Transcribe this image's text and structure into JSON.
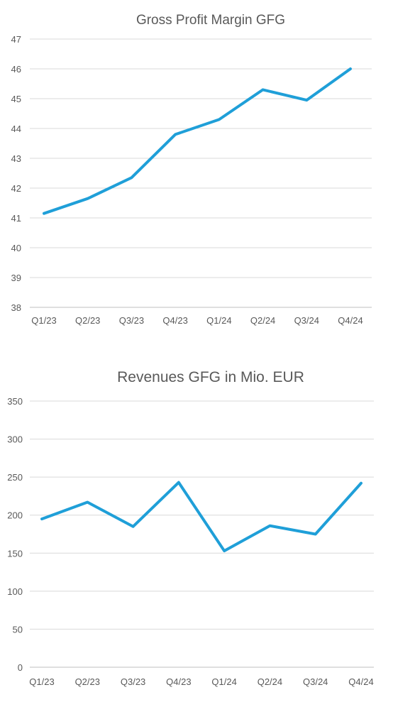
{
  "colors": {
    "series": "#1f9fd8",
    "grid": "#d9d9d9",
    "text": "#595959"
  },
  "chart_data": [
    {
      "type": "line",
      "title": "Gross Profit Margin GFG",
      "xlabel": "",
      "ylabel": "",
      "categories": [
        "Q1/23",
        "Q2/23",
        "Q3/23",
        "Q4/23",
        "Q1/24",
        "Q2/24",
        "Q3/24",
        "Q4/24"
      ],
      "series": [
        {
          "values": [
            41.15,
            41.65,
            42.35,
            43.8,
            44.3,
            45.3,
            44.95,
            46.0
          ]
        }
      ],
      "ylim": [
        38,
        47
      ],
      "yticks": [
        38,
        39,
        40,
        41,
        42,
        43,
        44,
        45,
        46,
        47
      ],
      "grid": true,
      "legend": "none"
    },
    {
      "type": "line",
      "title": "Revenues GFG in Mio. EUR",
      "xlabel": "",
      "ylabel": "",
      "categories": [
        "Q1/23",
        "Q2/23",
        "Q3/23",
        "Q4/23",
        "Q1/24",
        "Q2/24",
        "Q3/24",
        "Q4/24"
      ],
      "series": [
        {
          "values": [
            195,
            217,
            185,
            243,
            153,
            186,
            175,
            242
          ]
        }
      ],
      "ylim": [
        0,
        350
      ],
      "yticks": [
        0,
        50,
        100,
        150,
        200,
        250,
        300,
        350
      ],
      "grid": true,
      "legend": "none"
    }
  ]
}
